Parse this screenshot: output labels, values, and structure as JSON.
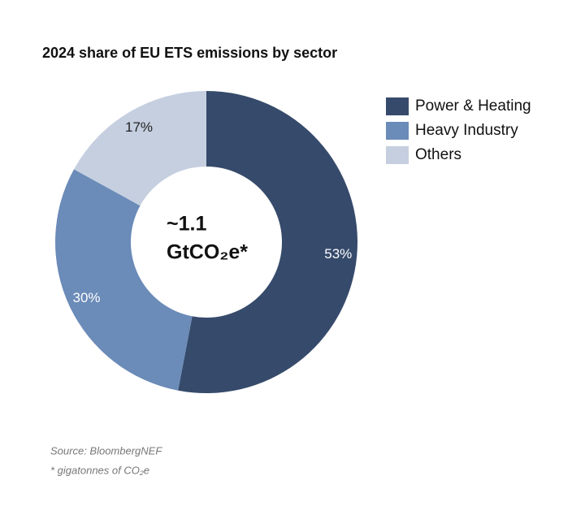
{
  "chart_data": {
    "type": "pie",
    "title": "2024 share of EU ETS emissions by sector",
    "categories": [
      "Power & Heating",
      "Heavy Industry",
      "Others"
    ],
    "values": [
      53,
      30,
      17
    ],
    "value_labels": [
      "53%",
      "30%",
      "17%"
    ],
    "colors": [
      "#364a6b",
      "#6b8bb8",
      "#c5cfe0"
    ],
    "label_colors": [
      "#ffffff",
      "#ffffff",
      "#222222"
    ],
    "center_label": [
      "~1.1",
      "GtCO₂e*"
    ],
    "legend": "right",
    "notes": [
      "Source: BloombergNEF",
      "* gigatonnes of CO₂e"
    ]
  }
}
